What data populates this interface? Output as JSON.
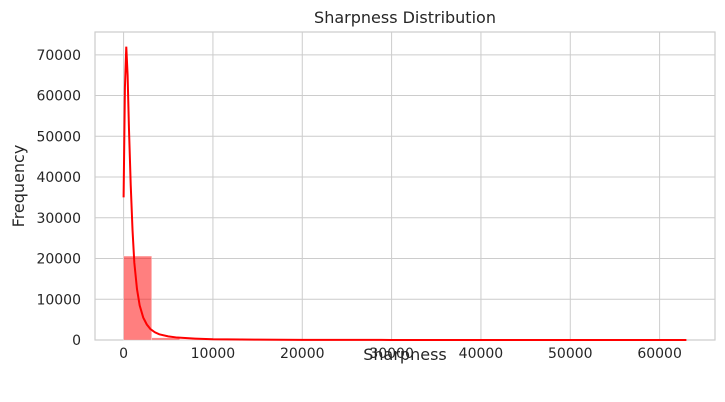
{
  "chart_data": {
    "type": "histogram",
    "title": "Sharpness Distribution",
    "xlabel": "Sharpness",
    "ylabel": "Frequency",
    "xlim": [
      -3200,
      66200
    ],
    "ylim": [
      0,
      75600
    ],
    "xticks": [
      0,
      10000,
      20000,
      30000,
      40000,
      50000,
      60000
    ],
    "yticks": [
      0,
      10000,
      20000,
      30000,
      40000,
      50000,
      60000,
      70000
    ],
    "grid": true,
    "bar_color": "#ff0000",
    "bar_alpha": 0.5,
    "kde_color": "#ff0000",
    "bins": [
      {
        "x0": 0,
        "x1": 3150,
        "count": 20600
      },
      {
        "x0": 3150,
        "x1": 6300,
        "count": 550
      },
      {
        "x0": 6300,
        "x1": 9450,
        "count": 150
      },
      {
        "x0": 9450,
        "x1": 12600,
        "count": 60
      },
      {
        "x0": 12600,
        "x1": 15750,
        "count": 30
      },
      {
        "x0": 15750,
        "x1": 18900,
        "count": 15
      },
      {
        "x0": 18900,
        "x1": 22050,
        "count": 10
      },
      {
        "x0": 22050,
        "x1": 25200,
        "count": 6
      },
      {
        "x0": 25200,
        "x1": 28350,
        "count": 4
      },
      {
        "x0": 28350,
        "x1": 31500,
        "count": 3
      },
      {
        "x0": 31500,
        "x1": 34650,
        "count": 2
      },
      {
        "x0": 34650,
        "x1": 37800,
        "count": 2
      },
      {
        "x0": 37800,
        "x1": 40950,
        "count": 1
      },
      {
        "x0": 40950,
        "x1": 44100,
        "count": 1
      },
      {
        "x0": 44100,
        "x1": 47250,
        "count": 1
      },
      {
        "x0": 47250,
        "x1": 50400,
        "count": 1
      },
      {
        "x0": 50400,
        "x1": 53550,
        "count": 1
      },
      {
        "x0": 53550,
        "x1": 56700,
        "count": 1
      },
      {
        "x0": 56700,
        "x1": 59850,
        "count": 1
      },
      {
        "x0": 59850,
        "x1": 63000,
        "count": 1
      }
    ],
    "kde": {
      "x": [
        0,
        150,
        300,
        450,
        600,
        800,
        1000,
        1200,
        1500,
        1800,
        2200,
        2600,
        3000,
        3500,
        4000,
        5000,
        6000,
        8000,
        10000,
        15000,
        20000,
        30000,
        40000,
        50000,
        60000,
        63000
      ],
      "y": [
        35000,
        62000,
        72000,
        65000,
        52000,
        38000,
        27000,
        19000,
        12500,
        8500,
        5500,
        3800,
        2700,
        1900,
        1400,
        900,
        600,
        350,
        200,
        80,
        40,
        15,
        8,
        5,
        3,
        2
      ]
    }
  }
}
